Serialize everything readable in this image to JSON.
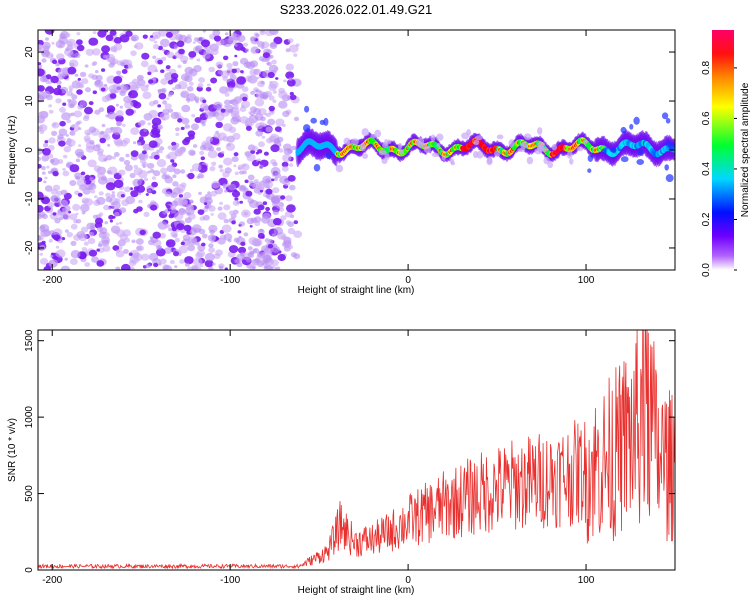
{
  "chart_data": [
    {
      "type": "heatmap",
      "title": "S233.2026.022.01.49.G21",
      "xlabel": "Height of straight line (km)",
      "ylabel": "Frequency (Hz)",
      "xlim": [
        -208,
        150
      ],
      "ylim": [
        -24.5,
        24.5
      ],
      "xticks": [
        -200,
        -100,
        0,
        100
      ],
      "yticks": [
        -20,
        -10,
        0,
        10,
        20
      ],
      "colorbar": {
        "label": "Normalized spectral amplitude",
        "range": [
          0,
          0.95
        ],
        "ticks": [
          "0.0",
          "0.2",
          "0.4",
          "0.6",
          "0.8"
        ],
        "tick_values": [
          0,
          0.2,
          0.4,
          0.6,
          0.8
        ],
        "colors": [
          "#ffffff",
          "#8a00ff",
          "#0000ff",
          "#00e5ff",
          "#00ff00",
          "#ffff00",
          "#ff8800",
          "#ff0000",
          "#ff0066"
        ]
      },
      "regions": [
        {
          "name": "noise",
          "x_range": [
            -208,
            -62
          ],
          "f_range": [
            -24.5,
            24.5
          ],
          "amplitude_range": [
            0,
            0.12
          ]
        },
        {
          "name": "signal",
          "x_range": [
            -62,
            150
          ],
          "center_freq": 0.5,
          "amplitude_peak": 0.95
        }
      ]
    },
    {
      "type": "line",
      "xlabel": "Height of straight line (km)",
      "ylabel": "SNR (10 * v/v)",
      "xlim": [
        -208,
        150
      ],
      "ylim": [
        0,
        1570
      ],
      "xticks": [
        -200,
        -100,
        0,
        100
      ],
      "yticks": [
        0,
        500,
        1000,
        1500
      ],
      "series": [
        {
          "name": "SNR",
          "color": "#e8302e",
          "envelope": {
            "x": [
              -208,
              -62,
              -55,
              -45,
              -38,
              -30,
              -20,
              -10,
              0,
              20,
              40,
              60,
              80,
              100,
              110,
              120,
              130,
              135,
              140,
              150
            ],
            "y": [
              20,
              20,
              60,
              120,
              300,
              180,
              200,
              250,
              320,
              420,
              500,
              560,
              600,
              650,
              700,
              800,
              950,
              1100,
              750,
              650
            ]
          },
          "peak": {
            "x": 132,
            "y": 1570
          }
        }
      ]
    }
  ]
}
